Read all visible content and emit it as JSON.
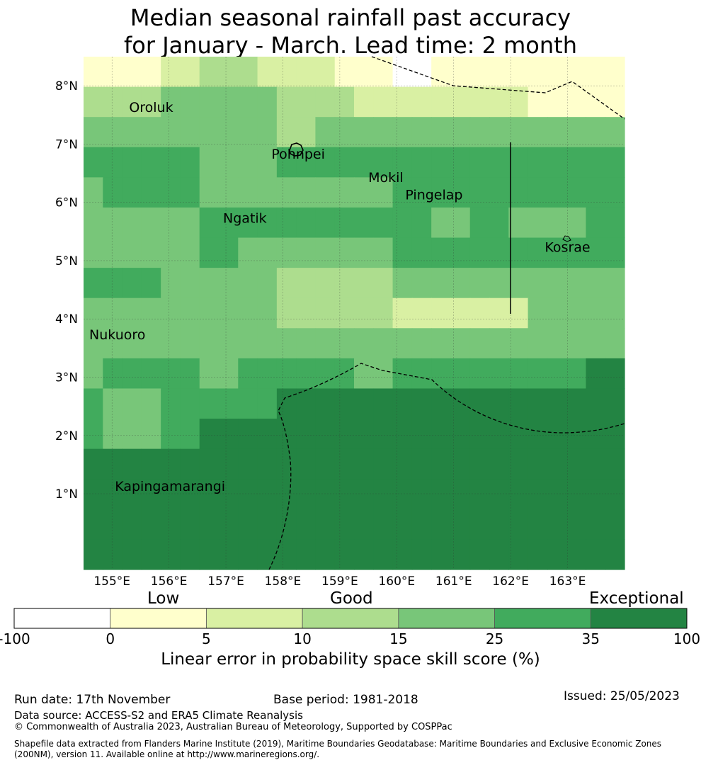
{
  "title_line1": "Median seasonal rainfall past accuracy",
  "title_line2": "for January - March. Lead time: 2 month",
  "map": {
    "lon_range": [
      154.5,
      164.0
    ],
    "lat_range": [
      -0.3,
      8.5
    ],
    "x_ticks": [
      "155°E",
      "156°E",
      "157°E",
      "158°E",
      "159°E",
      "160°E",
      "161°E",
      "162°E",
      "163°E"
    ],
    "y_ticks": [
      "1°N",
      "2°N",
      "3°N",
      "4°N",
      "5°N",
      "6°N",
      "7°N",
      "8°N"
    ],
    "places": [
      {
        "name": "Oroluk",
        "lon": 155.3,
        "lat": 7.55
      },
      {
        "name": "Pohnpei",
        "lon": 157.8,
        "lat": 6.75
      },
      {
        "name": "Mokil",
        "lon": 159.5,
        "lat": 6.35
      },
      {
        "name": "Pingelap",
        "lon": 160.15,
        "lat": 6.05
      },
      {
        "name": "Ngatik",
        "lon": 156.95,
        "lat": 5.65
      },
      {
        "name": "Kosrae",
        "lon": 162.6,
        "lat": 5.15
      },
      {
        "name": "Nukuoro",
        "lon": 154.6,
        "lat": 3.65
      },
      {
        "name": "Kapingamarangi",
        "lon": 155.05,
        "lat": 1.05
      }
    ],
    "grid_levels_note": "cell values are colour-bar class indices 0-6",
    "grid": [
      [
        1,
        1,
        1,
        1,
        2,
        2,
        3,
        3,
        3,
        2,
        2,
        2,
        2,
        1,
        1,
        1,
        0,
        0,
        1,
        1,
        1,
        1,
        1,
        1,
        1,
        1,
        1,
        1
      ],
      [
        3,
        3,
        3,
        3,
        4,
        4,
        4,
        4,
        4,
        4,
        3,
        3,
        3,
        3,
        2,
        2,
        2,
        2,
        2,
        2,
        2,
        2,
        2,
        1,
        1,
        1,
        1,
        1
      ],
      [
        4,
        4,
        4,
        4,
        4,
        4,
        4,
        4,
        4,
        4,
        3,
        3,
        4,
        4,
        4,
        4,
        4,
        4,
        4,
        4,
        4,
        4,
        4,
        4,
        4,
        4,
        4,
        4
      ],
      [
        5,
        5,
        5,
        5,
        5,
        5,
        4,
        4,
        4,
        4,
        5,
        5,
        5,
        5,
        5,
        5,
        5,
        5,
        5,
        5,
        5,
        5,
        5,
        5,
        5,
        5,
        5,
        5
      ],
      [
        4,
        5,
        5,
        5,
        5,
        5,
        4,
        4,
        4,
        4,
        4,
        4,
        4,
        4,
        4,
        4,
        5,
        5,
        5,
        5,
        5,
        5,
        5,
        5,
        5,
        5,
        5,
        5
      ],
      [
        4,
        4,
        4,
        4,
        4,
        4,
        5,
        5,
        5,
        5,
        5,
        5,
        5,
        5,
        5,
        5,
        5,
        5,
        4,
        4,
        5,
        5,
        4,
        4,
        4,
        4,
        5,
        5
      ],
      [
        4,
        4,
        4,
        4,
        4,
        4,
        5,
        5,
        4,
        4,
        4,
        4,
        4,
        4,
        4,
        4,
        5,
        5,
        5,
        5,
        5,
        5,
        5,
        5,
        5,
        5,
        5,
        5
      ],
      [
        5,
        5,
        5,
        5,
        4,
        4,
        4,
        4,
        4,
        4,
        3,
        3,
        3,
        3,
        3,
        3,
        4,
        4,
        4,
        4,
        4,
        4,
        4,
        4,
        4,
        4,
        4,
        4
      ],
      [
        4,
        4,
        4,
        4,
        4,
        4,
        4,
        4,
        4,
        4,
        3,
        3,
        3,
        3,
        3,
        3,
        2,
        2,
        2,
        2,
        2,
        2,
        2,
        4,
        4,
        4,
        4,
        4
      ],
      [
        4,
        4,
        4,
        4,
        4,
        4,
        4,
        4,
        4,
        4,
        4,
        4,
        4,
        4,
        4,
        4,
        4,
        4,
        4,
        4,
        4,
        4,
        4,
        4,
        4,
        4,
        4,
        4
      ],
      [
        4,
        5,
        5,
        5,
        5,
        5,
        4,
        4,
        5,
        5,
        5,
        5,
        5,
        5,
        4,
        4,
        5,
        5,
        5,
        5,
        5,
        5,
        5,
        5,
        5,
        5,
        6,
        6
      ],
      [
        5,
        4,
        4,
        4,
        5,
        5,
        5,
        5,
        5,
        5,
        6,
        6,
        6,
        6,
        6,
        6,
        6,
        6,
        6,
        6,
        6,
        6,
        6,
        6,
        6,
        6,
        6,
        6
      ],
      [
        5,
        4,
        4,
        4,
        5,
        5,
        6,
        6,
        6,
        6,
        6,
        6,
        6,
        6,
        6,
        6,
        6,
        6,
        6,
        6,
        6,
        6,
        6,
        6,
        6,
        6,
        6,
        6
      ],
      [
        6,
        6,
        6,
        6,
        6,
        6,
        6,
        6,
        6,
        6,
        6,
        6,
        6,
        6,
        6,
        6,
        6,
        6,
        6,
        6,
        6,
        6,
        6,
        6,
        6,
        6,
        6,
        6
      ],
      [
        6,
        6,
        6,
        6,
        6,
        6,
        6,
        6,
        6,
        6,
        6,
        6,
        6,
        6,
        6,
        6,
        6,
        6,
        6,
        6,
        6,
        6,
        6,
        6,
        6,
        6,
        6,
        6
      ],
      [
        6,
        6,
        6,
        6,
        6,
        6,
        6,
        6,
        6,
        6,
        6,
        6,
        6,
        6,
        6,
        6,
        6,
        6,
        6,
        6,
        6,
        6,
        6,
        6,
        6,
        6,
        6,
        6
      ],
      [
        6,
        6,
        6,
        6,
        6,
        6,
        6,
        6,
        6,
        6,
        6,
        6,
        6,
        6,
        6,
        6,
        6,
        6,
        6,
        6,
        6,
        6,
        6,
        6,
        6,
        6,
        6,
        6
      ]
    ]
  },
  "colorbar": {
    "titles": {
      "low": "Low",
      "good": "Good",
      "exceptional": "Exceptional"
    },
    "colors": [
      "#ffffff",
      "#ffffcc",
      "#d9f0a3",
      "#addd8e",
      "#78c679",
      "#41ab5d",
      "#238443"
    ],
    "ticks": [
      "-100",
      "0",
      "5",
      "10",
      "15",
      "25",
      "35",
      "100"
    ],
    "label": "Linear error in probability space skill score (%)"
  },
  "footer": {
    "run_date": "Run date: 17th November",
    "base_period": "Base period: 1981-2018",
    "issued": "Issued: 25/05/2023",
    "data_source": "Data source: ACCESS-S2 and ERA5 Climate Reanalysis",
    "copyright": "© Commonwealth of Australia 2023, Australian Bureau of Meteorology, Supported by COSPPac",
    "shapefile": "Shapefile data extracted from Flanders Marine Institute (2019), Maritime Boundaries Geodatabase: Maritime Boundaries and Exclusive Economic Zones (200NM), version 11. Available online at http://www.marineregions.org/."
  }
}
